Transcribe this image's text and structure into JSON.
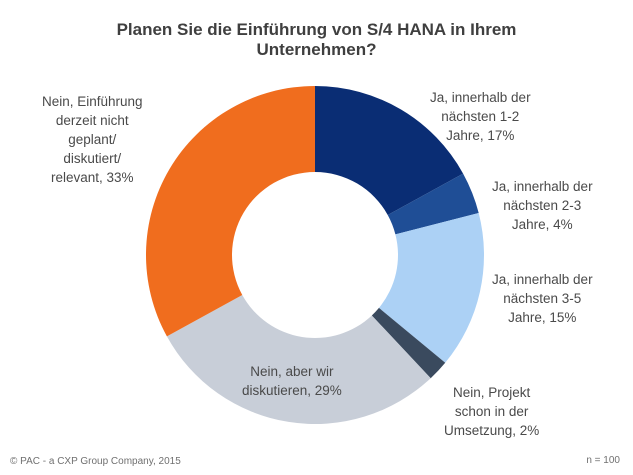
{
  "chart_data": {
    "type": "pie",
    "subtype": "donut",
    "title": "Planen Sie die Einführung von S/4 HANA in Ihrem Unternehmen?",
    "title_lines": [
      "Planen Sie die Einführung von S/4 HANA in Ihrem",
      "Unternehmen?"
    ],
    "unit": "%",
    "start_angle_deg": 0,
    "direction": "clockwise",
    "categories": [
      "Ja, innerhalb der nächsten 1-2 Jahre",
      "Ja, innerhalb der nächsten 2-3 Jahre",
      "Ja, innerhalb der nächsten 3-5 Jahre",
      "Nein, Projekt schon in der Umsetzung",
      "Nein, aber wir diskutieren",
      "Nein, Einführung derzeit nicht geplant/ diskutiert/ relevant"
    ],
    "values": [
      17,
      4,
      15,
      2,
      29,
      33
    ],
    "colors": [
      "#0a2d74",
      "#1f4e96",
      "#acd1f5",
      "#3a4a5e",
      "#c8ced8",
      "#f06d1e"
    ],
    "labels": [
      {
        "lines": [
          "Ja, innerhalb der",
          "nächsten 1-2",
          "Jahre, 17%"
        ]
      },
      {
        "lines": [
          "Ja, innerhalb der",
          "nächsten 2-3",
          "Jahre, 4%"
        ]
      },
      {
        "lines": [
          "Ja, innerhalb der",
          "nächsten 3-5",
          "Jahre, 15%"
        ]
      },
      {
        "lines": [
          "Nein, Projekt",
          "schon in der",
          "Umsetzung, 2%"
        ]
      },
      {
        "lines": [
          "Nein, aber wir",
          "diskutieren, 29%"
        ]
      },
      {
        "lines": [
          "Nein, Einführung",
          "derzeit nicht",
          "geplant/",
          "diskutiert/",
          "relevant, 33%"
        ]
      }
    ],
    "sample_size": "n = 100",
    "legend": "none (data labels)"
  },
  "footer": {
    "copyright": "© PAC - a CXP Group Company, 2015",
    "sample_size": "n = 100"
  }
}
